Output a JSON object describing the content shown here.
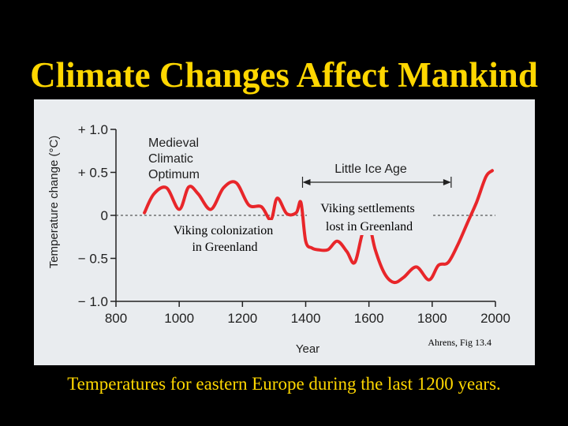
{
  "slide": {
    "title": "Climate Changes Affect Mankind",
    "caption": "Temperatures for eastern Europe during the last 1200 years.",
    "credit": "Ahrens, Fig 13.4"
  },
  "colors": {
    "title_text": "#ffd700",
    "background": "#000000",
    "panel": "#e9ecef",
    "curve": "#e8262a",
    "axis": "#222222"
  },
  "chart_data": {
    "type": "line",
    "xlabel": "Year",
    "ylabel": "Temperature change (°C)",
    "xlim": [
      800,
      2000
    ],
    "ylim": [
      -1.0,
      1.0
    ],
    "x_ticks": [
      800,
      1000,
      1200,
      1400,
      1600,
      1800,
      2000
    ],
    "y_ticks": [
      {
        "value": 1.0,
        "label": "+ 1.0"
      },
      {
        "value": 0.5,
        "label": "+ 0.5"
      },
      {
        "value": 0.0,
        "label": "0"
      },
      {
        "value": -0.5,
        "label": "− 0.5"
      },
      {
        "value": -1.0,
        "label": "− 1.0"
      }
    ],
    "baseline": 0.0,
    "series": [
      {
        "name": "Temperature change",
        "x": [
          890,
          920,
          960,
          1000,
          1030,
          1060,
          1100,
          1140,
          1180,
          1220,
          1260,
          1290,
          1310,
          1340,
          1370,
          1385,
          1400,
          1420,
          1440,
          1470,
          1500,
          1530,
          1555,
          1580,
          1600,
          1620,
          1650,
          1680,
          1710,
          1750,
          1790,
          1820,
          1850,
          1880,
          1910,
          1940,
          1970,
          1990
        ],
        "values": [
          0.03,
          0.25,
          0.32,
          0.07,
          0.33,
          0.25,
          0.07,
          0.32,
          0.38,
          0.12,
          0.1,
          -0.05,
          0.2,
          0.02,
          0.03,
          0.15,
          -0.3,
          -0.38,
          -0.4,
          -0.4,
          -0.3,
          -0.42,
          -0.55,
          -0.2,
          -0.1,
          -0.4,
          -0.68,
          -0.78,
          -0.72,
          -0.6,
          -0.75,
          -0.58,
          -0.55,
          -0.35,
          -0.1,
          0.15,
          0.45,
          0.52
        ]
      }
    ],
    "annotations": [
      {
        "id": "medieval",
        "lines": [
          "Medieval",
          "Climatic",
          "Optimum"
        ]
      },
      {
        "id": "little-ice-age",
        "text": "Little Ice Age",
        "range": [
          1390,
          1860
        ]
      },
      {
        "id": "viking-colonization",
        "lines": [
          "Viking colonization",
          "in Greenland"
        ]
      },
      {
        "id": "viking-settlements",
        "lines": [
          "Viking settlements",
          "lost in Greenland"
        ]
      }
    ]
  }
}
